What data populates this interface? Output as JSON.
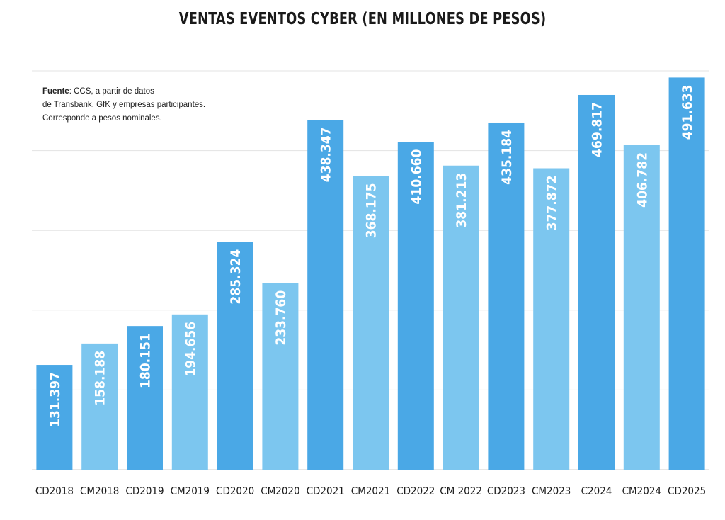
{
  "chart_data": {
    "type": "bar",
    "title": "VENTAS EVENTOS CYBER (EN MILLONES DE PESOS)",
    "categories": [
      "CD2018",
      "CM2018",
      "CD2019",
      "CM2019",
      "CD2020",
      "CM2020",
      "CD2021",
      "CM2021",
      "CD2022",
      "CM 2022",
      "CD2023",
      "CM2023",
      "C2024",
      "CM2024",
      "CD2025"
    ],
    "values": [
      131397,
      158188,
      180151,
      194656,
      285324,
      233760,
      438347,
      368175,
      410660,
      381213,
      435184,
      377872,
      469817,
      406782,
      491633
    ],
    "value_labels": [
      "131.397",
      "158.188",
      "180.151",
      "194.656",
      "285.324",
      "233.760",
      "438.347",
      "368.175",
      "410.660",
      "381.213",
      "435.184",
      "377.872",
      "469.817",
      "406.782",
      "491.633"
    ],
    "bar_colors": [
      "#4aa8e6",
      "#7cc6ef",
      "#4aa8e6",
      "#7cc6ef",
      "#4aa8e6",
      "#7cc6ef",
      "#4aa8e6",
      "#7cc6ef",
      "#4aa8e6",
      "#7cc6ef",
      "#4aa8e6",
      "#7cc6ef",
      "#4aa8e6",
      "#7cc6ef",
      "#4aa8e6"
    ],
    "ylim": [
      0,
      500000
    ],
    "grid": true,
    "xlabel": "",
    "ylabel": ""
  },
  "note": {
    "label": "Fuente",
    "line1": ": CCS, a partir de datos",
    "line2": "de Transbank,  GfK y empresas participantes.",
    "line3": "Corresponde a pesos nominales."
  },
  "colors": {
    "dark_bar": "#4aa8e6",
    "light_bar": "#7cc6ef",
    "grid": "#e3e3e3",
    "text": "#1a1a1a"
  }
}
